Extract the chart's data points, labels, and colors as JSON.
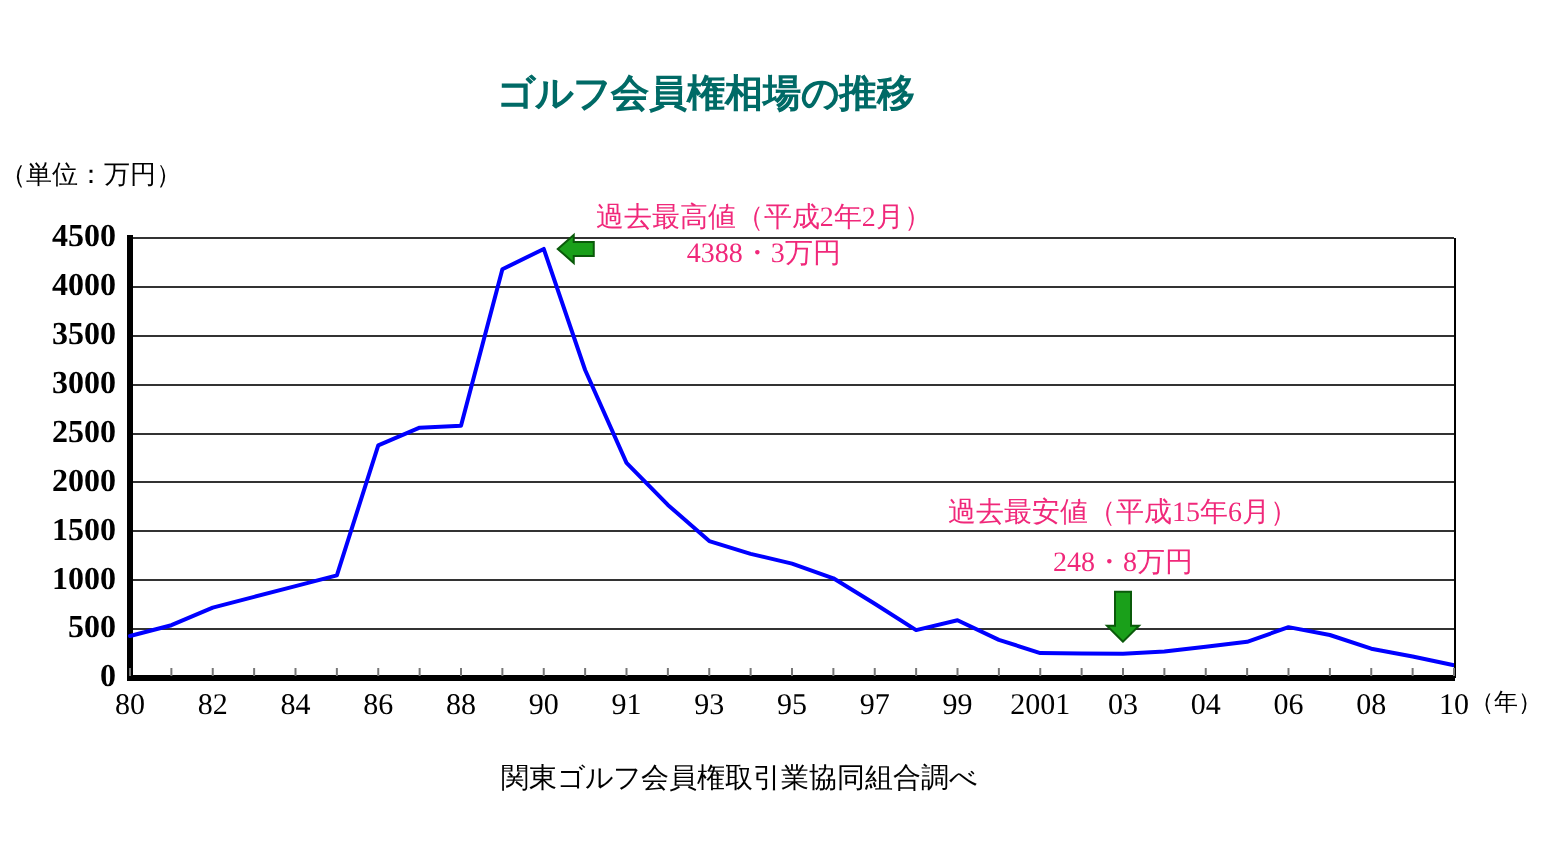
{
  "chart_data": {
    "type": "line",
    "title": "ゴルフ会員権相場の推移",
    "ylabel": "（単位：万円）",
    "xlabel": "（年）",
    "categories": [
      "80",
      null,
      "82",
      null,
      "84",
      null,
      "86",
      null,
      "88",
      null,
      "90",
      null,
      "91",
      null,
      "93",
      null,
      "95",
      null,
      "97",
      null,
      "99",
      null,
      "2001",
      null,
      "03",
      null,
      "04",
      null,
      "06",
      null,
      "08",
      null,
      "10"
    ],
    "series": [
      {
        "color": "#0000ff",
        "values": [
          430,
          540,
          720,
          830,
          940,
          1050,
          2380,
          2560,
          2580,
          4180,
          4388.3,
          3150,
          2200,
          1770,
          1400,
          1270,
          1170,
          1020,
          760,
          490,
          590,
          390,
          255,
          250,
          248.8,
          270,
          320,
          370,
          520,
          440,
          300,
          220,
          130
        ]
      }
    ],
    "ylim": [
      0,
      4500
    ],
    "yticks": [
      0,
      500,
      1000,
      1500,
      2000,
      2500,
      3000,
      3500,
      4000,
      4500
    ],
    "grid": "y",
    "legend": false,
    "annotations": [
      {
        "text": "過去最高値（平成2年2月）\n4388・3万円",
        "x": "90",
        "y": 4388.3
      },
      {
        "text": "過去最安値（平成15年6月）\n248・8万円",
        "x": "03",
        "y": 248.8
      },
      "関東ゴルフ会員権取引業協同組合調べ"
    ]
  }
}
